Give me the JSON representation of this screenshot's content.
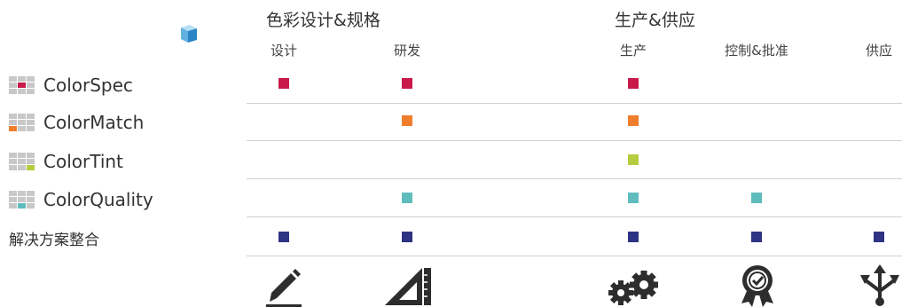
{
  "groups": [
    {
      "title": "色彩设计&规格"
    },
    {
      "title": "生产&供应"
    }
  ],
  "columns": [
    {
      "label": "设计"
    },
    {
      "label": "研发"
    },
    {
      "label": "生产"
    },
    {
      "label": "控制&批准"
    },
    {
      "label": "供应"
    }
  ],
  "rows": [
    {
      "label": "ColorSpec",
      "color": "#c8194a",
      "marks": [
        true,
        true,
        true,
        false,
        false
      ]
    },
    {
      "label": "ColorMatch",
      "color": "#ef7d2b",
      "marks": [
        false,
        true,
        true,
        false,
        false
      ]
    },
    {
      "label": "ColorTint",
      "color": "#b6cc3e",
      "marks": [
        false,
        false,
        true,
        false,
        false
      ]
    },
    {
      "label": "ColorQuality",
      "color": "#5fbcbd",
      "marks": [
        false,
        true,
        true,
        true,
        false
      ]
    },
    {
      "label": "解决方案整合",
      "color": "#2e3384",
      "marks": [
        true,
        true,
        true,
        true,
        true
      ]
    }
  ],
  "icons": [
    "pencil-icon",
    "ruler-triangle-icon",
    "gears-icon",
    "award-badge-icon",
    "distribution-arrows-icon"
  ],
  "logo_icon": "cube-icon"
}
